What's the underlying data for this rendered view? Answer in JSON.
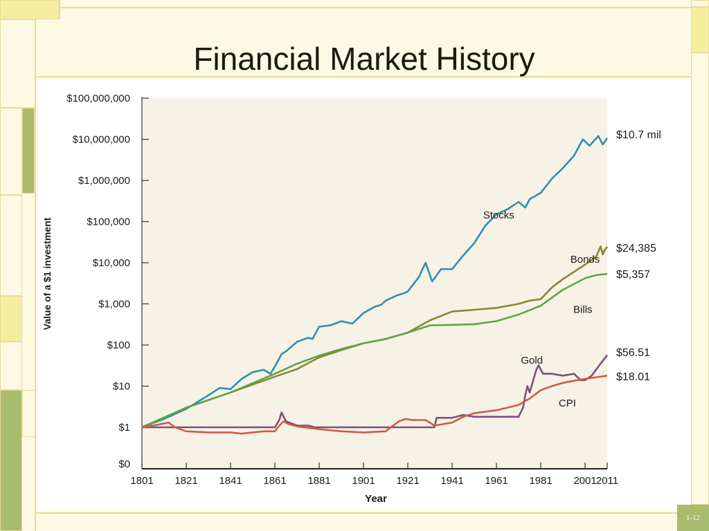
{
  "slide": {
    "title": "Financial Market History",
    "number": "1-12"
  },
  "colors": {
    "plot_background": "#f6f2e6",
    "stocks": "#2f8fb0",
    "bonds": "#8b8530",
    "bills": "#5ea446",
    "gold": "#7e4f7a",
    "cpi": "#d05a45",
    "slide_accent_yellow": "#f4ee9e",
    "slide_accent_green": "#a9bb6d"
  },
  "chart_data": {
    "type": "line",
    "scale": "log",
    "xlabel": "Year",
    "ylabel": "Value of a $1 investment",
    "xlim": [
      1801,
      2011
    ],
    "x_ticks": [
      1801,
      1821,
      1841,
      1861,
      1881,
      1901,
      1921,
      1941,
      1961,
      1981,
      2001,
      2011
    ],
    "y_ticks": [
      {
        "value": 1,
        "label": "$1"
      },
      {
        "value": 10,
        "label": "$10"
      },
      {
        "value": 100,
        "label": "$100"
      },
      {
        "value": 1000,
        "label": "$1,000"
      },
      {
        "value": 10000,
        "label": "$10,000"
      },
      {
        "value": 100000,
        "label": "$100,000"
      },
      {
        "value": 1000000,
        "label": "$1,000,000"
      },
      {
        "value": 10000000,
        "label": "$10,000,000"
      },
      {
        "value": 100000000,
        "label": "$100,000,000"
      }
    ],
    "y_zero_label": "$0",
    "grid": false,
    "series": [
      {
        "name": "Stocks",
        "end_label": "$10.7 mil",
        "color_key": "stocks",
        "points": [
          [
            1801,
            1
          ],
          [
            1811,
            1.6
          ],
          [
            1821,
            2.8
          ],
          [
            1831,
            6
          ],
          [
            1836,
            9
          ],
          [
            1841,
            8.5
          ],
          [
            1846,
            15
          ],
          [
            1851,
            22
          ],
          [
            1856,
            25
          ],
          [
            1859,
            20
          ],
          [
            1861,
            30
          ],
          [
            1864,
            60
          ],
          [
            1866,
            70
          ],
          [
            1871,
            120
          ],
          [
            1876,
            150
          ],
          [
            1878,
            140
          ],
          [
            1881,
            280
          ],
          [
            1886,
            300
          ],
          [
            1891,
            380
          ],
          [
            1896,
            330
          ],
          [
            1901,
            600
          ],
          [
            1906,
            850
          ],
          [
            1909,
            950
          ],
          [
            1911,
            1200
          ],
          [
            1916,
            1600
          ],
          [
            1919,
            1800
          ],
          [
            1921,
            2000
          ],
          [
            1926,
            4500
          ],
          [
            1929,
            10000
          ],
          [
            1932,
            3500
          ],
          [
            1936,
            7000
          ],
          [
            1941,
            7000
          ],
          [
            1946,
            15000
          ],
          [
            1951,
            30000
          ],
          [
            1956,
            80000
          ],
          [
            1961,
            150000
          ],
          [
            1966,
            200000
          ],
          [
            1971,
            300000
          ],
          [
            1974,
            220000
          ],
          [
            1976,
            350000
          ],
          [
            1981,
            500000
          ],
          [
            1986,
            1100000
          ],
          [
            1991,
            2000000
          ],
          [
            1996,
            4000000
          ],
          [
            2000,
            10000000
          ],
          [
            2003,
            7000000
          ],
          [
            2007,
            12000000
          ],
          [
            2009,
            7500000
          ],
          [
            2011,
            10700000
          ]
        ]
      },
      {
        "name": "Bonds",
        "end_label": "$24,385",
        "color_key": "bonds",
        "points": [
          [
            1801,
            1
          ],
          [
            1821,
            3
          ],
          [
            1841,
            7
          ],
          [
            1861,
            17
          ],
          [
            1871,
            26
          ],
          [
            1881,
            50
          ],
          [
            1891,
            75
          ],
          [
            1901,
            110
          ],
          [
            1911,
            140
          ],
          [
            1921,
            200
          ],
          [
            1931,
            400
          ],
          [
            1941,
            650
          ],
          [
            1951,
            720
          ],
          [
            1961,
            800
          ],
          [
            1971,
            1000
          ],
          [
            1976,
            1200
          ],
          [
            1981,
            1300
          ],
          [
            1986,
            2500
          ],
          [
            1991,
            4000
          ],
          [
            1996,
            6000
          ],
          [
            2001,
            9000
          ],
          [
            2006,
            14000
          ],
          [
            2008,
            25000
          ],
          [
            2009,
            16000
          ],
          [
            2010,
            21000
          ],
          [
            2011,
            24385
          ]
        ]
      },
      {
        "name": "Bills",
        "end_label": "$5,357",
        "color_key": "bills",
        "points": [
          [
            1801,
            1
          ],
          [
            1821,
            3
          ],
          [
            1841,
            7
          ],
          [
            1861,
            20
          ],
          [
            1871,
            35
          ],
          [
            1881,
            55
          ],
          [
            1891,
            80
          ],
          [
            1901,
            110
          ],
          [
            1911,
            140
          ],
          [
            1921,
            200
          ],
          [
            1931,
            300
          ],
          [
            1941,
            310
          ],
          [
            1951,
            320
          ],
          [
            1961,
            380
          ],
          [
            1971,
            550
          ],
          [
            1981,
            900
          ],
          [
            1991,
            2200
          ],
          [
            2001,
            4200
          ],
          [
            2006,
            5000
          ],
          [
            2011,
            5357
          ]
        ]
      },
      {
        "name": "Gold",
        "end_label": "$56.51",
        "color_key": "gold",
        "points": [
          [
            1801,
            1
          ],
          [
            1811,
            1
          ],
          [
            1821,
            1
          ],
          [
            1831,
            1
          ],
          [
            1841,
            1
          ],
          [
            1851,
            1
          ],
          [
            1861,
            1
          ],
          [
            1863,
            1.5
          ],
          [
            1864,
            2.3
          ],
          [
            1866,
            1.4
          ],
          [
            1871,
            1.1
          ],
          [
            1876,
            1.1
          ],
          [
            1879,
            1
          ],
          [
            1901,
            1
          ],
          [
            1921,
            1
          ],
          [
            1933,
            1
          ],
          [
            1934,
            1.7
          ],
          [
            1941,
            1.7
          ],
          [
            1946,
            2
          ],
          [
            1951,
            1.8
          ],
          [
            1961,
            1.8
          ],
          [
            1966,
            1.8
          ],
          [
            1971,
            1.8
          ],
          [
            1973,
            3
          ],
          [
            1974,
            6
          ],
          [
            1975,
            10
          ],
          [
            1976,
            7
          ],
          [
            1979,
            25
          ],
          [
            1980,
            32
          ],
          [
            1982,
            20
          ],
          [
            1986,
            20
          ],
          [
            1991,
            18
          ],
          [
            1996,
            20
          ],
          [
            1999,
            14
          ],
          [
            2001,
            14
          ],
          [
            2004,
            18
          ],
          [
            2007,
            30
          ],
          [
            2011,
            56.51
          ]
        ]
      },
      {
        "name": "CPI",
        "end_label": "$18.01",
        "color_key": "cpi",
        "points": [
          [
            1801,
            1
          ],
          [
            1806,
            1.1
          ],
          [
            1813,
            1.3
          ],
          [
            1816,
            1
          ],
          [
            1821,
            0.8
          ],
          [
            1831,
            0.75
          ],
          [
            1841,
            0.75
          ],
          [
            1846,
            0.7
          ],
          [
            1851,
            0.75
          ],
          [
            1856,
            0.8
          ],
          [
            1861,
            0.8
          ],
          [
            1863,
            1.1
          ],
          [
            1865,
            1.4
          ],
          [
            1867,
            1.2
          ],
          [
            1871,
            1.05
          ],
          [
            1881,
            0.9
          ],
          [
            1891,
            0.8
          ],
          [
            1901,
            0.75
          ],
          [
            1911,
            0.8
          ],
          [
            1917,
            1.4
          ],
          [
            1920,
            1.6
          ],
          [
            1923,
            1.5
          ],
          [
            1929,
            1.5
          ],
          [
            1933,
            1.1
          ],
          [
            1941,
            1.3
          ],
          [
            1946,
            1.8
          ],
          [
            1951,
            2.2
          ],
          [
            1961,
            2.6
          ],
          [
            1966,
            3
          ],
          [
            1971,
            3.5
          ],
          [
            1976,
            5
          ],
          [
            1981,
            8
          ],
          [
            1986,
            10
          ],
          [
            1991,
            12
          ],
          [
            1996,
            13.5
          ],
          [
            2001,
            15
          ],
          [
            2006,
            16.5
          ],
          [
            2011,
            18.01
          ]
        ]
      }
    ],
    "annotations": [
      {
        "text": "Stocks",
        "x": 1962,
        "y": 120000
      },
      {
        "text": "Bonds",
        "x": 2001,
        "y": 10000
      },
      {
        "text": "Bills",
        "x": 2000,
        "y": 600
      },
      {
        "text": "Gold",
        "x": 1977,
        "y": 35
      },
      {
        "text": "CPI",
        "x": 1993,
        "y": 3.2
      }
    ]
  }
}
